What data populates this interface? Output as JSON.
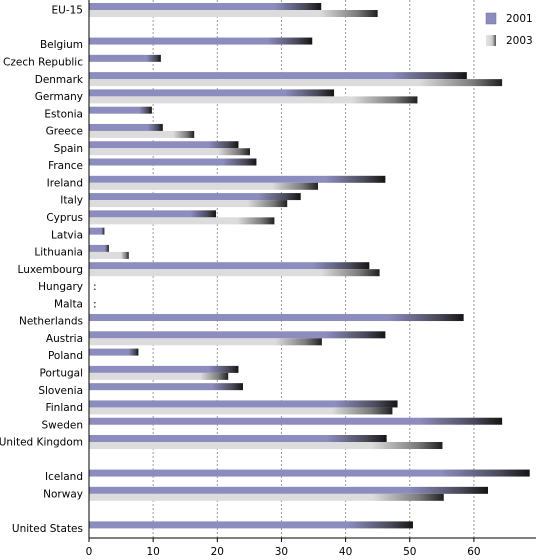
{
  "chart_data": {
    "type": "bar",
    "orientation": "horizontal",
    "categories": [
      "EU-15",
      "",
      "Belgium",
      "Czech Republic",
      "Denmark",
      "Germany",
      "Estonia",
      "Greece",
      "Spain",
      "France",
      "Ireland",
      "Italy",
      "Cyprus",
      "Latvia",
      "Lithuania",
      "Luxembourg",
      "Hungary",
      "Malta",
      "Netherlands",
      "Austria",
      "Poland",
      "Portugal",
      "Slovenia",
      "Finland",
      "Sweden",
      "United Kingdom",
      "",
      "Iceland",
      "Norway",
      "",
      "United States"
    ],
    "series": [
      {
        "name": "2001",
        "color": "#8c8cbe",
        "values": [
          36.2,
          null,
          34.8,
          11.2,
          58.9,
          38.2,
          9.8,
          11.5,
          23.3,
          26.1,
          46.2,
          33.0,
          19.8,
          2.4,
          3.1,
          43.7,
          null,
          null,
          58.4,
          46.2,
          7.7,
          23.3,
          24.0,
          48.1,
          64.4,
          46.4,
          null,
          68.7,
          62.2,
          null,
          50.5
        ]
      },
      {
        "name": "2003",
        "color": "#dcdcdc",
        "values": [
          45.0,
          null,
          null,
          null,
          64.4,
          51.2,
          null,
          16.4,
          25.1,
          null,
          35.7,
          30.9,
          28.9,
          null,
          6.2,
          45.3,
          null,
          null,
          null,
          36.3,
          null,
          21.7,
          null,
          47.3,
          null,
          55.1,
          null,
          null,
          55.3,
          null,
          null
        ]
      }
    ],
    "missing_marker": ":",
    "missing_categories": [
      "Hungary",
      "Malta"
    ],
    "x_ticks": [
      "0",
      "10",
      "20",
      "30",
      "40",
      "50",
      "60"
    ],
    "xlim": [
      0,
      69
    ],
    "grid": "vertical dashed",
    "legend_position": "top-right",
    "title": "",
    "xlabel": "",
    "ylabel": ""
  }
}
